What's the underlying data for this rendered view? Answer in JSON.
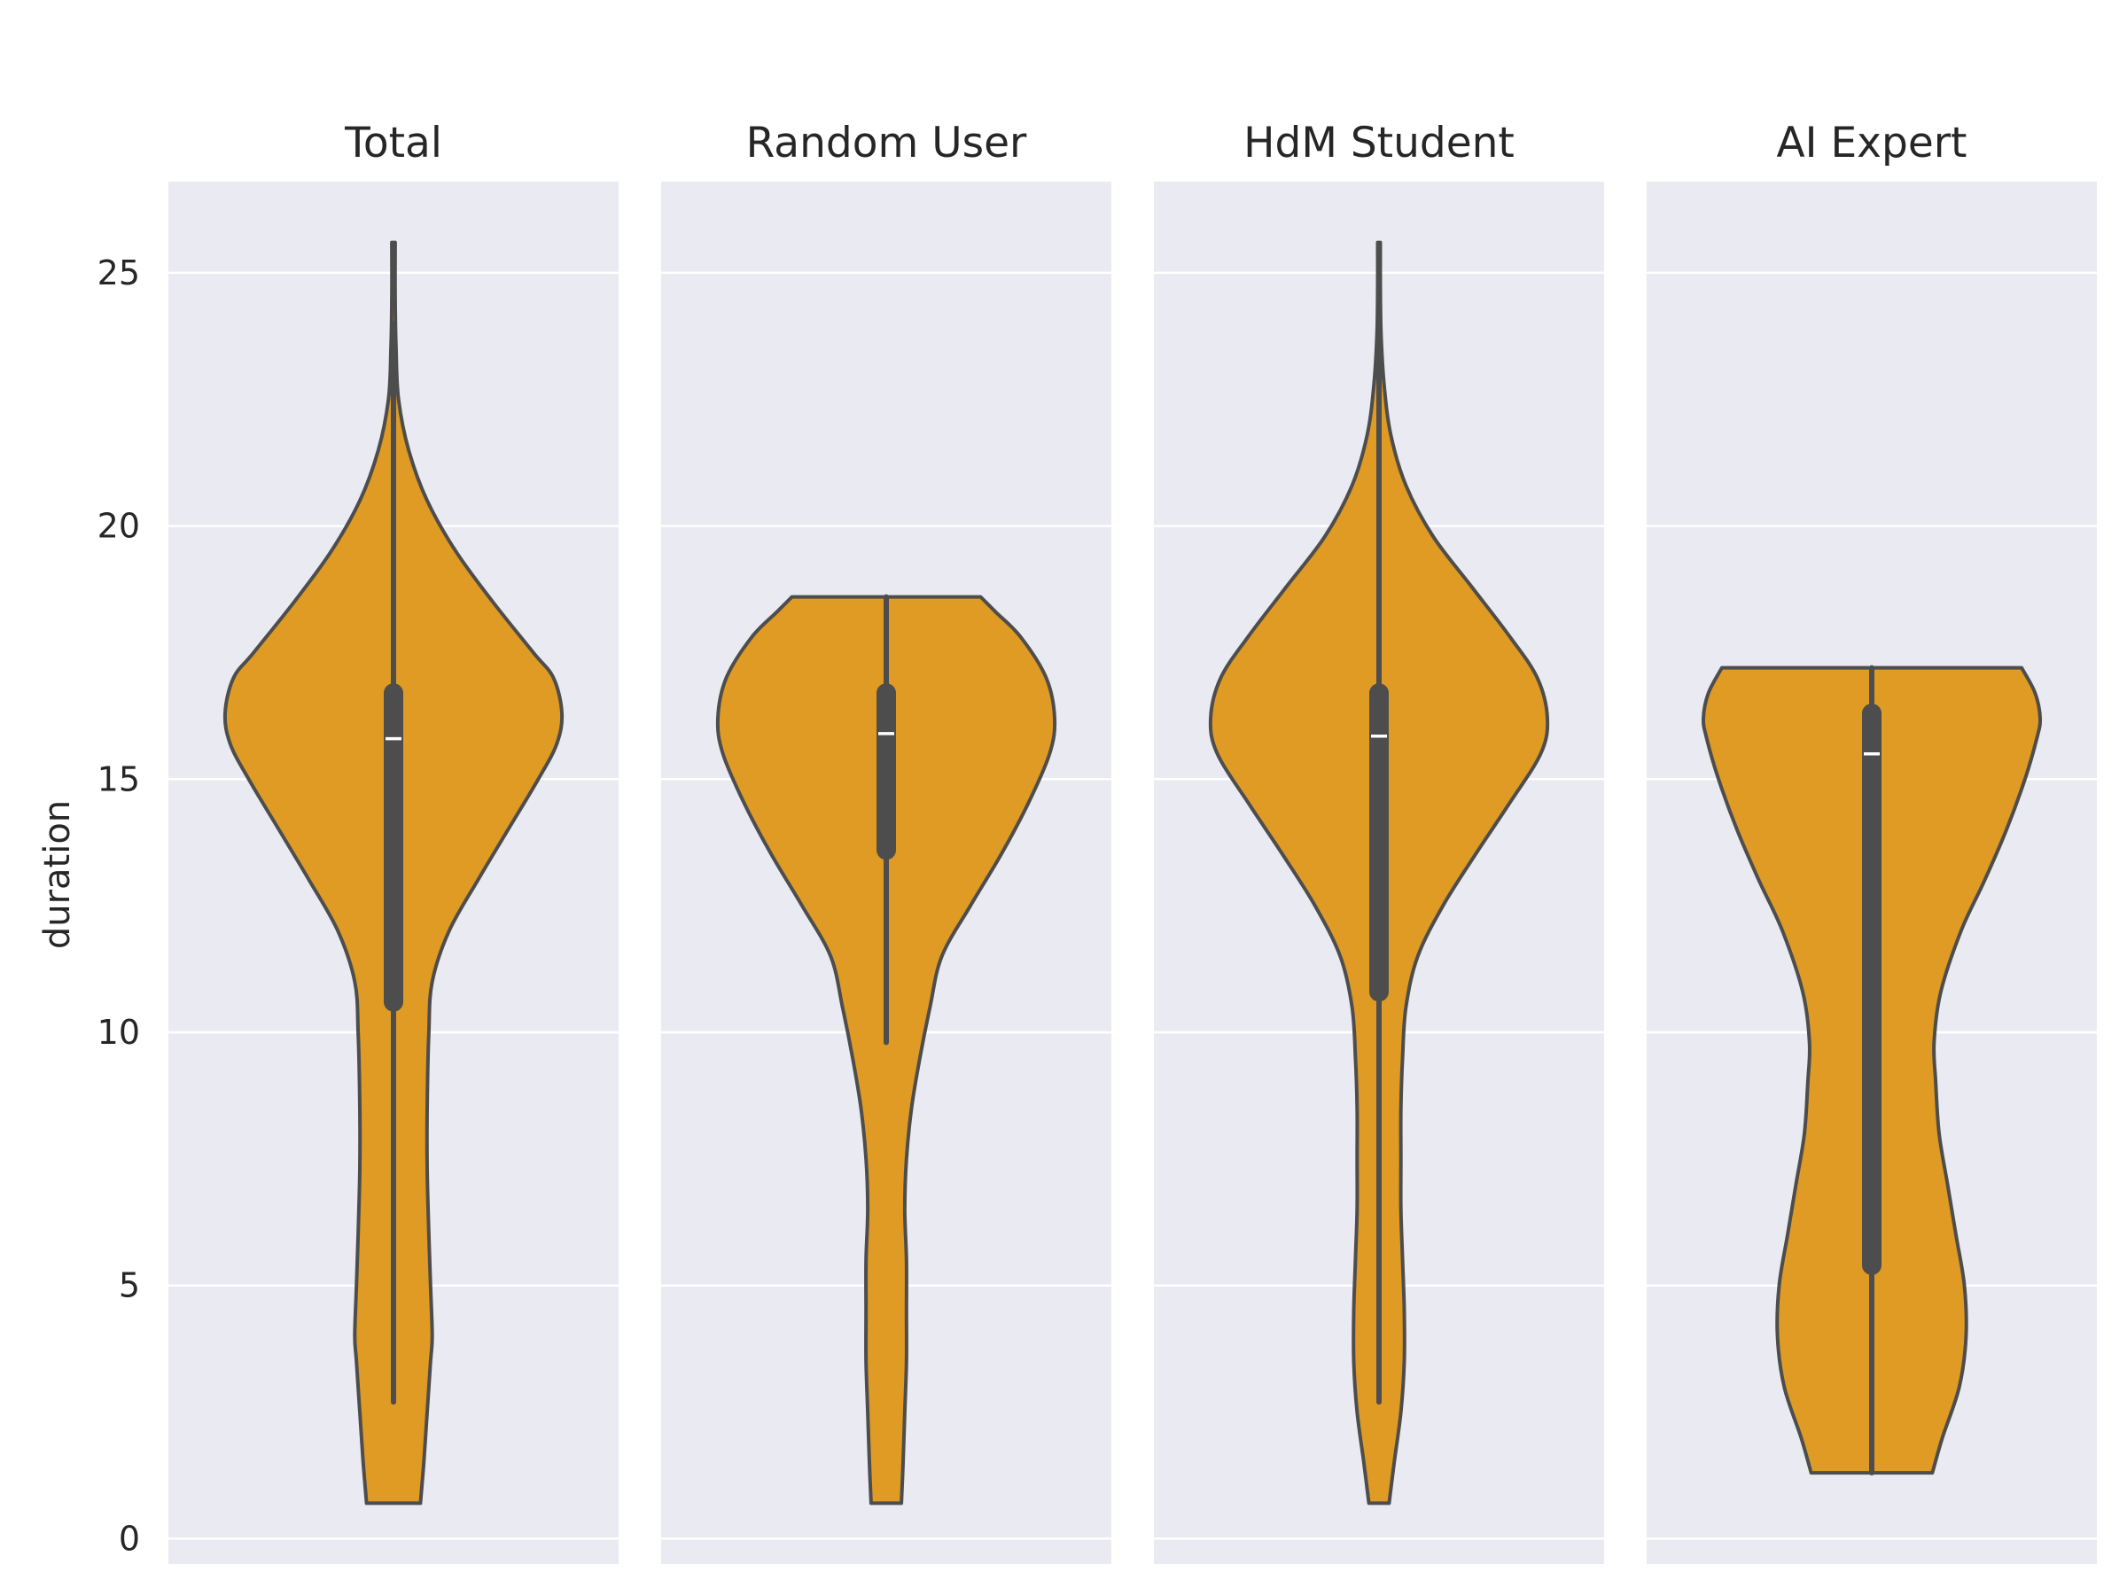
{
  "chart_data": {
    "type": "violin",
    "ylabel": "duration",
    "yticks": [
      "0",
      "5",
      "10",
      "15",
      "20",
      "25"
    ],
    "ylim": [
      -0.5,
      26.8
    ],
    "grid": true,
    "colors": {
      "background": "#eaeaf2",
      "grid": "#ffffff",
      "violin_fill": "#df9b23",
      "violin_edge": "#4d4d4d",
      "box": "#4d4d4d",
      "median": "#ffffff",
      "text": "#262626"
    },
    "panels": [
      {
        "title": "Total",
        "min": 0.7,
        "max": 25.6,
        "whisker_low": 2.7,
        "whisker_high": 24.0,
        "q1": 10.6,
        "median": 15.8,
        "q3": 16.7,
        "density": [
          [
            0.7,
            0.16
          ],
          [
            1.5,
            0.18
          ],
          [
            2.5,
            0.2
          ],
          [
            3.5,
            0.22
          ],
          [
            4.0,
            0.23
          ],
          [
            5.0,
            0.22
          ],
          [
            6.0,
            0.21
          ],
          [
            7.3,
            0.2
          ],
          [
            8.5,
            0.2
          ],
          [
            10.0,
            0.21
          ],
          [
            11.0,
            0.23
          ],
          [
            12.0,
            0.33
          ],
          [
            13.0,
            0.5
          ],
          [
            14.0,
            0.68
          ],
          [
            15.0,
            0.86
          ],
          [
            15.7,
            0.97
          ],
          [
            16.3,
            1.0
          ],
          [
            17.0,
            0.95
          ],
          [
            17.5,
            0.83
          ],
          [
            18.5,
            0.59
          ],
          [
            19.5,
            0.37
          ],
          [
            20.5,
            0.2
          ],
          [
            21.5,
            0.09
          ],
          [
            22.5,
            0.03
          ],
          [
            23.5,
            0.015
          ],
          [
            24.5,
            0.01
          ],
          [
            25.6,
            0.01
          ]
        ]
      },
      {
        "title": "Random User",
        "min": 0.7,
        "max": 18.6,
        "whisker_low": 9.8,
        "whisker_high": 18.6,
        "q1": 13.6,
        "median": 15.9,
        "q3": 16.7,
        "density": [
          [
            0.7,
            0.09
          ],
          [
            1.5,
            0.1
          ],
          [
            2.5,
            0.11
          ],
          [
            3.5,
            0.12
          ],
          [
            4.5,
            0.12
          ],
          [
            5.5,
            0.12
          ],
          [
            6.5,
            0.11
          ],
          [
            7.5,
            0.12
          ],
          [
            8.5,
            0.15
          ],
          [
            9.5,
            0.2
          ],
          [
            10.5,
            0.26
          ],
          [
            11.5,
            0.33
          ],
          [
            12.5,
            0.5
          ],
          [
            13.5,
            0.68
          ],
          [
            14.5,
            0.84
          ],
          [
            15.5,
            0.97
          ],
          [
            16.2,
            1.0
          ],
          [
            17.0,
            0.95
          ],
          [
            17.8,
            0.8
          ],
          [
            18.3,
            0.65
          ],
          [
            18.6,
            0.56
          ]
        ]
      },
      {
        "title": "HdM Student",
        "min": 0.7,
        "max": 25.6,
        "whisker_low": 2.7,
        "whisker_high": 23.9,
        "q1": 10.8,
        "median": 15.85,
        "q3": 16.7,
        "density": [
          [
            0.7,
            0.06
          ],
          [
            1.5,
            0.09
          ],
          [
            2.5,
            0.13
          ],
          [
            3.5,
            0.15
          ],
          [
            4.5,
            0.15
          ],
          [
            5.5,
            0.14
          ],
          [
            6.5,
            0.13
          ],
          [
            7.5,
            0.13
          ],
          [
            8.5,
            0.13
          ],
          [
            9.5,
            0.14
          ],
          [
            10.5,
            0.16
          ],
          [
            11.5,
            0.23
          ],
          [
            12.5,
            0.38
          ],
          [
            13.5,
            0.57
          ],
          [
            14.5,
            0.77
          ],
          [
            15.5,
            0.96
          ],
          [
            16.2,
            1.0
          ],
          [
            17.0,
            0.94
          ],
          [
            17.8,
            0.78
          ],
          [
            18.8,
            0.55
          ],
          [
            19.8,
            0.32
          ],
          [
            20.8,
            0.16
          ],
          [
            21.8,
            0.07
          ],
          [
            22.8,
            0.03
          ],
          [
            23.8,
            0.012
          ],
          [
            24.8,
            0.008
          ],
          [
            25.6,
            0.008
          ]
        ]
      },
      {
        "title": "AI Expert",
        "min": 1.3,
        "max": 17.2,
        "whisker_low": 1.3,
        "whisker_high": 17.2,
        "q1": 5.4,
        "median": 15.5,
        "q3": 16.3,
        "density": [
          [
            1.3,
            0.36
          ],
          [
            2.0,
            0.42
          ],
          [
            3.0,
            0.52
          ],
          [
            4.0,
            0.56
          ],
          [
            5.0,
            0.55
          ],
          [
            6.0,
            0.5
          ],
          [
            7.0,
            0.45
          ],
          [
            8.0,
            0.4
          ],
          [
            9.0,
            0.38
          ],
          [
            9.8,
            0.37
          ],
          [
            10.8,
            0.41
          ],
          [
            12.0,
            0.53
          ],
          [
            13.0,
            0.67
          ],
          [
            14.0,
            0.8
          ],
          [
            15.0,
            0.91
          ],
          [
            15.8,
            0.98
          ],
          [
            16.2,
            1.0
          ],
          [
            16.7,
            0.97
          ],
          [
            17.2,
            0.89
          ]
        ]
      }
    ]
  }
}
